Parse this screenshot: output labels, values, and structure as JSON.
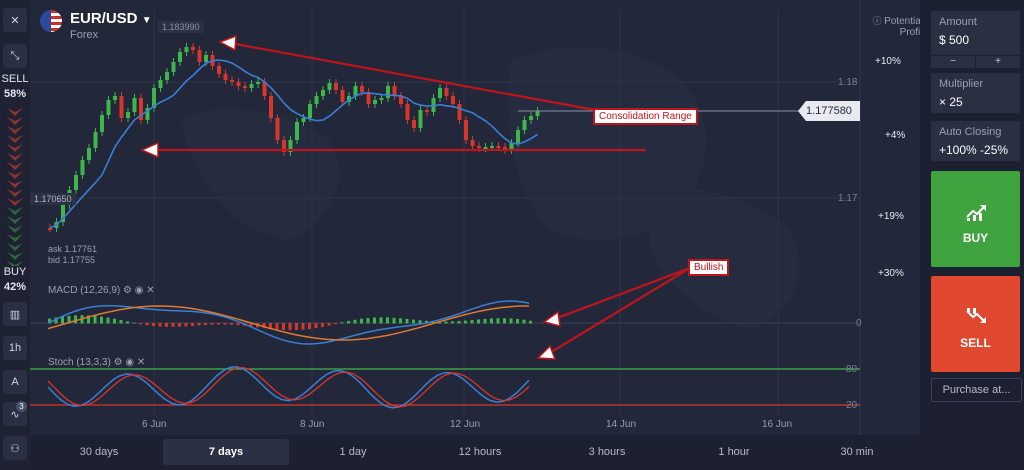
{
  "header": {
    "pair": "EUR/USD",
    "category": "Forex",
    "flag_icon": "eu-us-flag-icon"
  },
  "left": {
    "sell_label": "SELL",
    "sell_pct": "58%",
    "buy_label": "BUY",
    "buy_pct": "42%",
    "timeframe_btn": "1h",
    "indicator_count": "3"
  },
  "chart": {
    "high_marker": "1.183990",
    "low_marker": "1.170650",
    "current_price": "1.177580",
    "ask": "ask 1.17761",
    "bid": "bid 1.17755",
    "price_ticks": [
      "1.18",
      "1.17"
    ],
    "potential_profit_label": "Potential Profit",
    "profit_levels": [
      "+10%",
      "+4%",
      "+19%",
      "+30%"
    ],
    "date_labels": [
      "6 Jun",
      "8 Jun",
      "12 Jun",
      "14 Jun",
      "16 Jun"
    ],
    "macd_label": "MACD (12,26,9)",
    "macd_zero": "0",
    "stoch_label": "Stoch (13,3,3)",
    "stoch_levels": [
      "80",
      "20"
    ],
    "annotation_consolidation": "Consolidation Range",
    "annotation_bullish": "Bullish"
  },
  "timeframes": [
    {
      "label": "30 days",
      "active": false
    },
    {
      "label": "7 days",
      "active": true
    },
    {
      "label": "1 day",
      "active": false
    },
    {
      "label": "12 hours",
      "active": false
    },
    {
      "label": "3 hours",
      "active": false
    },
    {
      "label": "1 hour",
      "active": false
    },
    {
      "label": "30 min",
      "active": false
    }
  ],
  "panel": {
    "amount_label": "Amount",
    "amount_value": "$ 500",
    "minus": "−",
    "plus": "+",
    "multiplier_label": "Multiplier",
    "multiplier_value": "× 25",
    "auto_label": "Auto Closing",
    "auto_value": "+100% -25%",
    "buy": "BUY",
    "sell": "SELL",
    "purchase": "Purchase at..."
  },
  "colors": {
    "bull": "#3fb64c",
    "bear": "#d9362b",
    "ma": "#3a7fd6",
    "annotation": "#c0141c",
    "stoch_hi": "#3fb64c",
    "stoch_lo": "#d9362b"
  }
}
